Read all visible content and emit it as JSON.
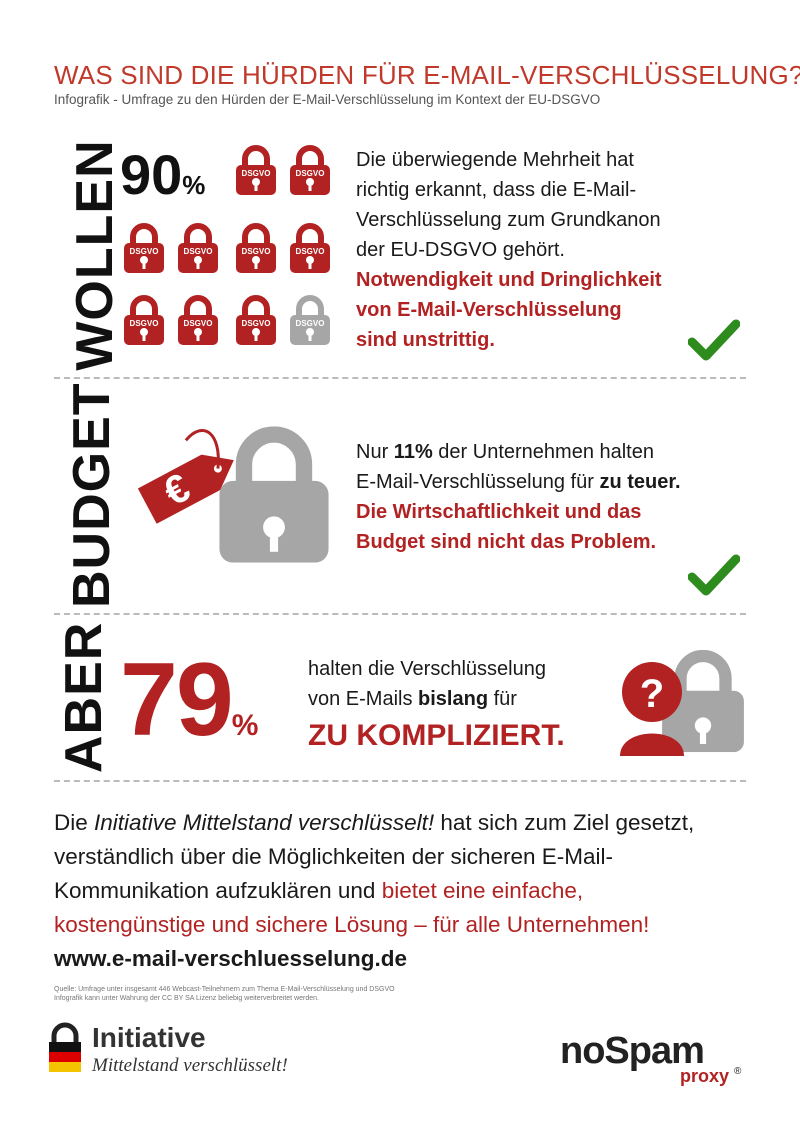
{
  "header": {
    "title": "WAS SIND DIE HÜRDEN FÜR E-MAIL-VERSCHLÜSSELUNG?",
    "subtitle": "Infografik - Umfrage zu den Hürden der E-Mail-Verschlüsselung im Kontext der EU-DSGVO"
  },
  "section_wollen": {
    "label": "WOLLEN",
    "percent_number": "90",
    "percent_sign": "%",
    "value_fraction": 0.9,
    "lock_label": "DSGVO",
    "lock_count_red": 9,
    "lock_count_total": 10,
    "text_lines": [
      "Die überwiegende Mehrheit hat",
      "richtig erkannt, dass die E-Mail-",
      "Verschlüsselung zum Grundkanon",
      "der EU-DSGVO gehört."
    ],
    "highlight_lines": [
      "Notwendigkeit und Dringlichkeit",
      "von E-Mail-Verschlüsselung",
      "sind unstrittig."
    ]
  },
  "section_budget": {
    "label": "BUDGET",
    "euro_symbol": "€",
    "line1_a": "Nur ",
    "line1_b": "11%",
    "line1_c": " der Unternehmen halten",
    "line2_a": "E-Mail-Verschlüsselung für ",
    "line2_b": "zu teuer.",
    "highlight_lines": [
      "Die Wirtschaftlichkeit und das",
      "Budget sind nicht das Problem."
    ]
  },
  "section_aber": {
    "label": "ABER",
    "percent_number": "79",
    "percent_sign": "%",
    "line1": "halten die Verschlüsselung",
    "line2_a": "von E-Mails ",
    "line2_b": "bislang",
    "line2_c": " für",
    "highlight": "ZU KOMPLIZIERT.",
    "question_mark": "?"
  },
  "footer_text": {
    "p1_a": "Die ",
    "p1_italic": "Initiative Mittelstand verschlüsselt!",
    "p1_b": " hat sich zum Ziel gesetzt,",
    "p2": "verständlich über die Möglichkeiten der sicheren E-Mail-",
    "p3_a": "Kommunikation aufzuklären und ",
    "p3_b": "bietet eine einfache,",
    "p4": "kostengünstige und sichere Lösung – für alle Unternehmen!",
    "url": "www.e-mail-verschluesselung.de"
  },
  "source": {
    "line1": "Quelle: Umfrage unter insgesamt 446 Webcast-Teilnehmern zum Thema E-Mail-Verschlüsselung und DSGVO",
    "line2": "Infografik kann unter Wahrung der CC BY SA Lizenz beliebig weiterverbreitet werden."
  },
  "logos": {
    "initiative_word": "Initiative",
    "initiative_tagline": "Mittelstand verschlüsselt!",
    "nospam": "noSpam",
    "proxy": "proxy",
    "registered": "®"
  },
  "colors": {
    "accent": "#b22222",
    "lock_gray": "#a6a6a6",
    "check_green": "#2e8b1e"
  }
}
